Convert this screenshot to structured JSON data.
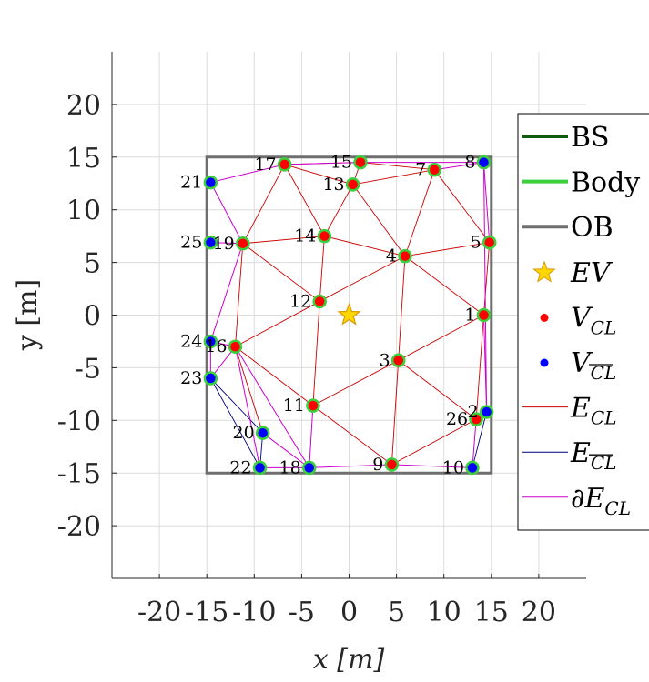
{
  "chart_data": {
    "type": "scatter",
    "xlabel": "x [m]",
    "ylabel": "y [m]",
    "xlim": [
      -25,
      25
    ],
    "ylim": [
      -25,
      25
    ],
    "xticks": [
      -20,
      -15,
      -10,
      -5,
      0,
      5,
      10,
      15,
      20
    ],
    "yticks": [
      20,
      15,
      10,
      5,
      0,
      -5,
      -10,
      -15,
      -20
    ],
    "grid": true,
    "legend_position": "right",
    "ev": {
      "x": 0,
      "y": 0
    },
    "boundary": [
      [
        -15,
        15
      ],
      [
        15,
        15
      ],
      [
        15,
        -15
      ],
      [
        -15,
        -15
      ]
    ],
    "nodes": [
      {
        "id": "1",
        "x": 14.2,
        "y": 0,
        "set": "CL"
      },
      {
        "id": "3",
        "x": 5.2,
        "y": -4.3,
        "set": "CL"
      },
      {
        "id": "4",
        "x": 5.9,
        "y": 5.6,
        "set": "CL"
      },
      {
        "id": "5",
        "x": 14.8,
        "y": 6.9,
        "set": "CL"
      },
      {
        "id": "7",
        "x": 9.0,
        "y": 13.8,
        "set": "CL"
      },
      {
        "id": "8",
        "x": 14.2,
        "y": 14.5,
        "set": "notCL"
      },
      {
        "id": "9",
        "x": 4.5,
        "y": -14.2,
        "set": "CL"
      },
      {
        "id": "10",
        "x": 13.0,
        "y": -14.5,
        "set": "notCL"
      },
      {
        "id": "11",
        "x": -3.8,
        "y": -8.6,
        "set": "CL"
      },
      {
        "id": "12",
        "x": -3.1,
        "y": 1.3,
        "set": "CL"
      },
      {
        "id": "13",
        "x": 0.4,
        "y": 12.4,
        "set": "CL"
      },
      {
        "id": "14",
        "x": -2.6,
        "y": 7.5,
        "set": "CL"
      },
      {
        "id": "15",
        "x": 1.2,
        "y": 14.5,
        "set": "CL"
      },
      {
        "id": "16",
        "x": -12.0,
        "y": -3.0,
        "set": "CL"
      },
      {
        "id": "17",
        "x": -6.8,
        "y": 14.3,
        "set": "CL"
      },
      {
        "id": "18",
        "x": -4.2,
        "y": -14.5,
        "set": "notCL"
      },
      {
        "id": "19",
        "x": -11.2,
        "y": 6.8,
        "set": "CL"
      },
      {
        "id": "20",
        "x": -9.1,
        "y": -11.2,
        "set": "notCL"
      },
      {
        "id": "21",
        "x": -14.6,
        "y": 12.6,
        "set": "notCL"
      },
      {
        "id": "22",
        "x": -9.4,
        "y": -14.5,
        "set": "notCL"
      },
      {
        "id": "23",
        "x": -14.6,
        "y": -6.0,
        "set": "notCL"
      },
      {
        "id": "24",
        "x": -14.6,
        "y": -2.5,
        "set": "notCL"
      },
      {
        "id": "25",
        "x": -14.6,
        "y": 6.9,
        "set": "notCL"
      },
      {
        "id": "26",
        "x": 13.4,
        "y": -9.9,
        "set": "CL"
      },
      {
        "id": "2",
        "x": 14.5,
        "y": -9.2,
        "set": "notCL"
      }
    ],
    "edges_cl": [
      [
        "12",
        "19"
      ],
      [
        "12",
        "4"
      ],
      [
        "12",
        "16"
      ],
      [
        "12",
        "11"
      ],
      [
        "12",
        "14"
      ],
      [
        "14",
        "19"
      ],
      [
        "14",
        "13"
      ],
      [
        "14",
        "17"
      ],
      [
        "14",
        "4"
      ],
      [
        "17",
        "19"
      ],
      [
        "17",
        "13"
      ],
      [
        "17",
        "15"
      ],
      [
        "13",
        "15"
      ],
      [
        "13",
        "4"
      ],
      [
        "13",
        "7"
      ],
      [
        "15",
        "7"
      ],
      [
        "4",
        "7"
      ],
      [
        "4",
        "5"
      ],
      [
        "4",
        "1"
      ],
      [
        "4",
        "3"
      ],
      [
        "7",
        "5"
      ],
      [
        "5",
        "1"
      ],
      [
        "3",
        "1"
      ],
      [
        "3",
        "11"
      ],
      [
        "3",
        "9"
      ],
      [
        "3",
        "26"
      ],
      [
        "1",
        "26"
      ],
      [
        "11",
        "16"
      ],
      [
        "11",
        "9"
      ],
      [
        "19",
        "16"
      ],
      [
        "16",
        "20"
      ],
      [
        "9",
        "26"
      ]
    ],
    "edges_notcl": [
      [
        "23",
        "20"
      ],
      [
        "23",
        "22"
      ],
      [
        "20",
        "22"
      ],
      [
        "10",
        "2"
      ]
    ],
    "edges_boundary": [
      [
        "21",
        "17"
      ],
      [
        "21",
        "19"
      ],
      [
        "25",
        "19"
      ],
      [
        "24",
        "19"
      ],
      [
        "24",
        "23"
      ],
      [
        "24",
        "16"
      ],
      [
        "23",
        "16"
      ],
      [
        "16",
        "22"
      ],
      [
        "16",
        "18"
      ],
      [
        "20",
        "18"
      ],
      [
        "11",
        "18"
      ],
      [
        "22",
        "18"
      ],
      [
        "18",
        "9"
      ],
      [
        "9",
        "10"
      ],
      [
        "10",
        "26"
      ],
      [
        "2",
        "26"
      ],
      [
        "2",
        "1"
      ],
      [
        "2",
        "8"
      ],
      [
        "8",
        "7"
      ],
      [
        "8",
        "5"
      ],
      [
        "15",
        "17"
      ],
      [
        "15",
        "8"
      ]
    ],
    "legend": [
      {
        "label": "BS",
        "kind": "line",
        "color": "#0f5c0f"
      },
      {
        "label": "Body",
        "kind": "line",
        "color": "#3ccf3c"
      },
      {
        "label": "OB",
        "kind": "line",
        "color": "#6e6e6e"
      },
      {
        "label": "EV",
        "kind": "star",
        "color": "#ffd700"
      },
      {
        "label": "V_CL",
        "kind": "dot",
        "color": "#ff0000"
      },
      {
        "label": "V_notCL",
        "kind": "dot",
        "color": "#0000ff"
      },
      {
        "label": "E_CL",
        "kind": "line",
        "color": "#cc0000"
      },
      {
        "label": "E_notCL",
        "kind": "line",
        "color": "#000080"
      },
      {
        "label": "dE_CL",
        "kind": "line",
        "color": "#cc00cc"
      }
    ],
    "colors": {
      "cl_node": "#ff0000",
      "notcl_node": "#0000ff",
      "node_ring": "#3ccf3c",
      "edge_cl": "#cc0000",
      "edge_notcl": "#000080",
      "edge_boundary": "#cc00cc",
      "ob": "#6e6e6e",
      "ev_fill": "#ffd700",
      "ev_stroke": "#d99a00",
      "grid": "#dcdcdc",
      "axis": "#262626"
    }
  }
}
